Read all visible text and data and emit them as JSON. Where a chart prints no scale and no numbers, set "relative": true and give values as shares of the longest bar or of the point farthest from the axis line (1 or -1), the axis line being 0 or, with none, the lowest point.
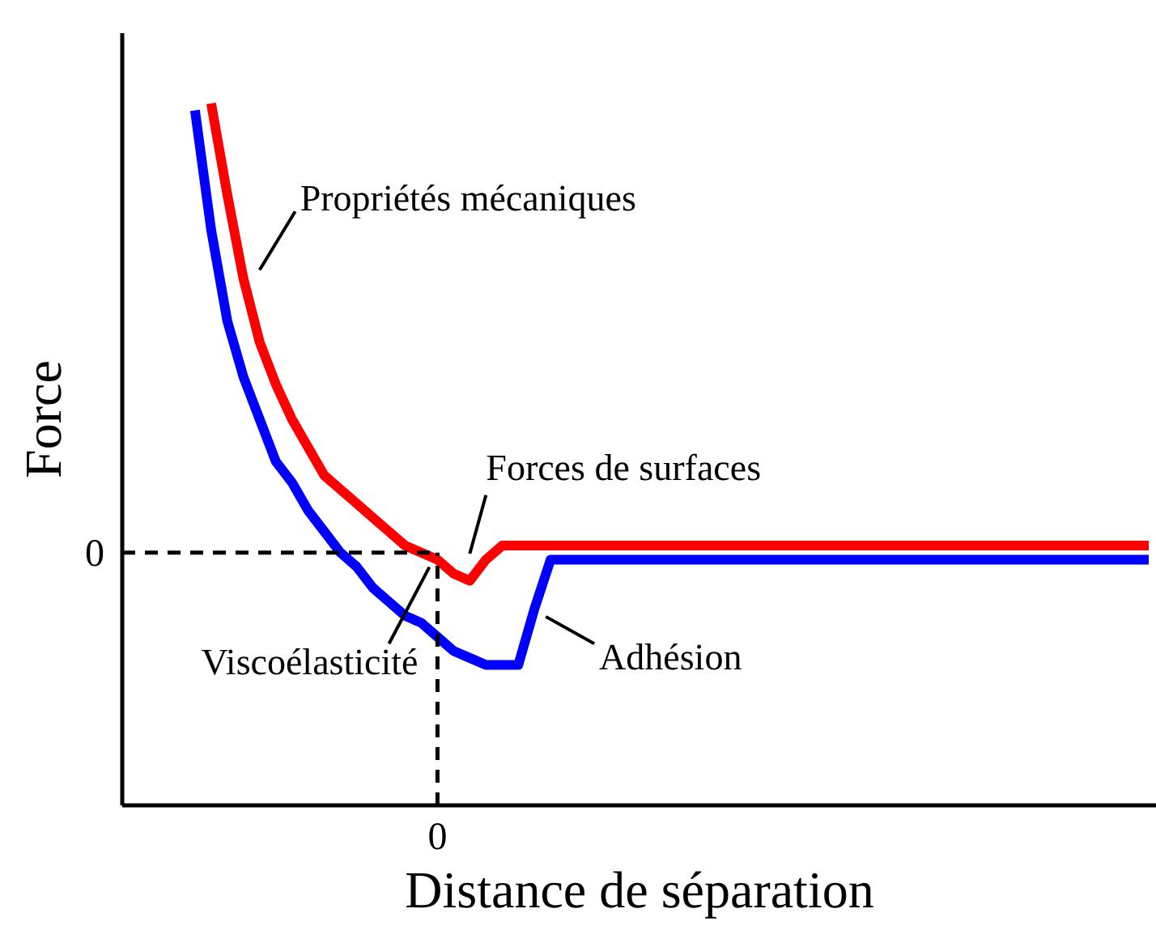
{
  "chart_data": {
    "type": "line",
    "xlabel": "Distance de séparation",
    "ylabel": "Force",
    "relative": true,
    "grid": false,
    "legend": false,
    "line_style": "solid",
    "marker": "none",
    "categories": [
      null,
      null,
      null,
      null,
      null,
      null,
      null,
      null,
      null,
      null,
      null,
      null,
      null,
      null,
      null,
      null,
      null,
      null,
      null,
      null,
      null,
      null,
      null,
      null,
      null,
      null,
      null,
      null,
      null,
      null,
      null,
      null,
      null,
      null,
      null,
      null,
      null,
      null,
      null,
      null,
      null,
      null,
      null,
      null,
      null,
      null,
      null,
      null,
      null,
      null,
      null,
      null,
      null,
      null,
      null,
      null,
      null,
      null,
      null,
      null,
      null,
      null,
      null,
      null
    ],
    "series": [
      {
        "color": "#0000ff",
        "values": [
          null,
          null,
          null,
          null,
          0.99,
          0.82,
          0.69,
          0.61,
          0.55,
          0.49,
          0.46,
          0.42,
          0.39,
          0.36,
          0.34,
          0.31,
          0.29,
          0.27,
          0.26,
          0.24,
          0.22,
          0.21,
          0.2,
          0.2,
          0.2,
          0.28,
          0.35,
          0.35,
          0.35,
          0.35,
          0.35,
          0.35,
          0.35,
          0.35,
          0.35,
          0.35,
          0.35,
          0.35,
          0.35,
          0.35,
          0.35,
          0.35,
          0.35,
          0.35,
          0.35,
          0.35,
          0.35,
          0.35,
          0.35,
          0.35,
          0.35,
          0.35,
          0.35,
          0.35,
          0.35,
          0.35,
          0.35,
          0.35,
          0.35,
          0.35,
          0.35,
          0.35,
          0.35,
          0.35
        ]
      },
      {
        "color": "#ff0000",
        "values": [
          null,
          null,
          null,
          null,
          null,
          1.0,
          0.87,
          0.75,
          0.66,
          0.6,
          0.55,
          0.51,
          0.47,
          0.45,
          0.43,
          0.41,
          0.39,
          0.37,
          0.36,
          0.35,
          0.33,
          0.32,
          0.35,
          0.37,
          0.37,
          0.37,
          0.37,
          0.37,
          0.37,
          0.37,
          0.37,
          0.37,
          0.37,
          0.37,
          0.37,
          0.37,
          0.37,
          0.37,
          0.37,
          0.37,
          0.37,
          0.37,
          0.37,
          0.37,
          0.37,
          0.37,
          0.37,
          0.37,
          0.37,
          0.37,
          0.37,
          0.37,
          0.37,
          0.37,
          0.37,
          0.37,
          0.37,
          0.37,
          0.37,
          0.37,
          0.37,
          0.37,
          0.37,
          0.37
        ]
      }
    ],
    "ref_lines": [
      {
        "axis": "y",
        "value": 0.36,
        "label": "0",
        "line_style": "dashed"
      }
    ],
    "annotations": [
      "Propriétés mécaniques",
      "Forces de surfaces",
      "Viscoélasticité",
      "Adhésion",
      "0"
    ]
  }
}
